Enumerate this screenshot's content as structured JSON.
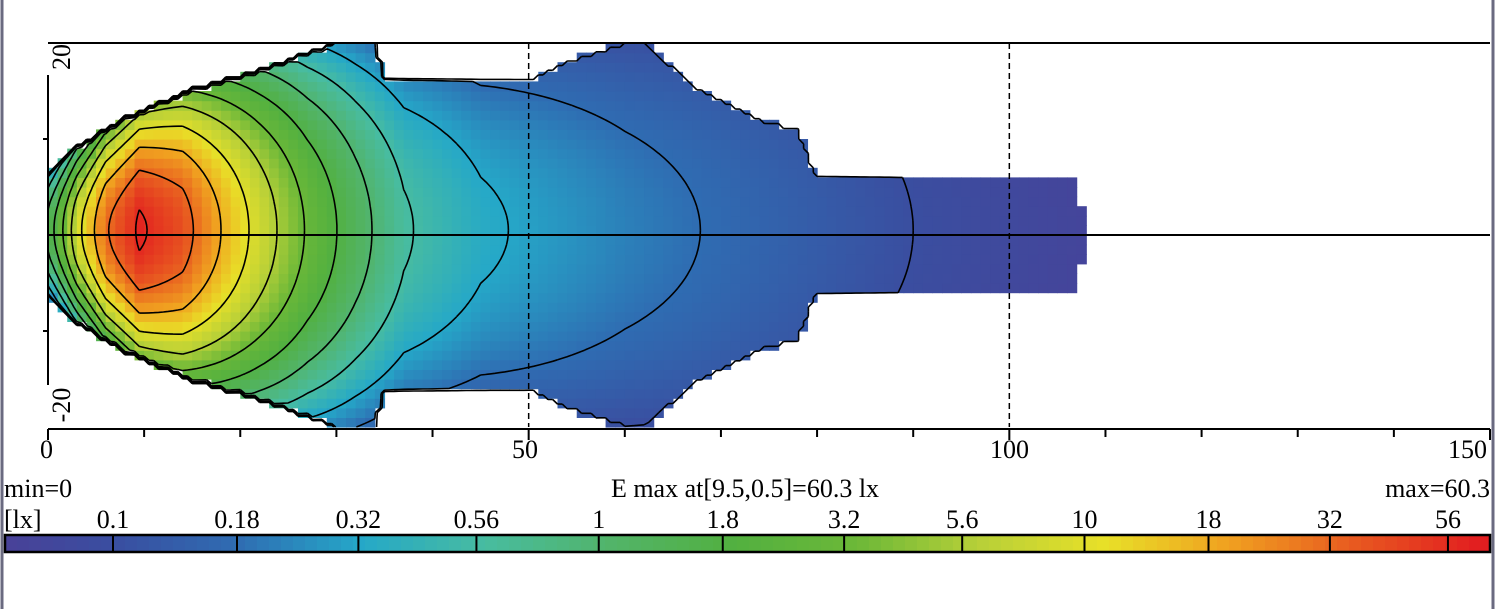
{
  "chart_data": {
    "type": "heatmap",
    "title": "",
    "xlim": [
      0,
      150
    ],
    "ylim": [
      -20,
      20
    ],
    "x_tick_labels": [
      "0",
      "50",
      "100",
      "150"
    ],
    "y_tick_labels": [
      "20",
      "-20"
    ],
    "x_minor_tick_step": 10,
    "y_minor_tick_step": 10,
    "dashed_reference_x": [
      50,
      100
    ],
    "reference_y": 0,
    "min_label": "min=0",
    "max_label": "max=60.3",
    "peak_label": "E max at[9.5,0.5]=60.3 lx",
    "peak": {
      "x": 9.5,
      "y": 0.5,
      "value": 60.3
    },
    "unit_label": "[lx]",
    "levels": [
      0.1,
      0.18,
      0.32,
      0.56,
      1,
      1.8,
      3.2,
      5.6,
      10,
      18,
      32,
      56
    ],
    "level_labels": [
      "0.1",
      "0.18",
      "0.32",
      "0.56",
      "1",
      "1.8",
      "3.2",
      "5.6",
      "10",
      "18",
      "32",
      "56"
    ],
    "colorscale": [
      "#4b3f97",
      "#3a4ea0",
      "#2f6cb2",
      "#25a8c8",
      "#48bca0",
      "#52b46a",
      "#52b040",
      "#6cb838",
      "#b8d038",
      "#e8e028",
      "#f0a020",
      "#e85a20",
      "#e21e20"
    ],
    "centerline_profile": {
      "x": [
        0,
        3,
        6,
        9.5,
        14,
        18,
        22,
        27,
        32,
        37,
        45,
        60,
        75,
        90,
        108
      ],
      "E": [
        1.2,
        8,
        30,
        60.3,
        40,
        18,
        8,
        3,
        1.3,
        0.6,
        0.35,
        0.22,
        0.15,
        0.1,
        0.07
      ]
    },
    "extent_halfwidth": {
      "x": [
        0,
        3,
        8,
        15,
        22,
        30,
        34,
        35,
        50,
        54,
        60,
        62,
        68,
        74,
        78,
        80,
        97,
        104,
        107,
        108
      ],
      "y": [
        6,
        9,
        12,
        15,
        17,
        20,
        20,
        16,
        16,
        18,
        20,
        20,
        15,
        12,
        11,
        6,
        6,
        6,
        6,
        0
      ]
    }
  }
}
